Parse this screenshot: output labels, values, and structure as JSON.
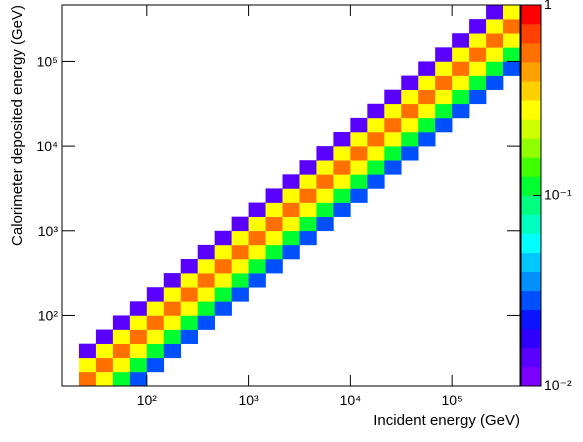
{
  "chart_data": {
    "type": "heatmap",
    "x_label": "Incident energy (GeV)",
    "y_label": "Calorimeter deposited energy (GeV)",
    "xlog": true,
    "ylog": true,
    "zlog": true,
    "xlim": [
      14.678,
      464160
    ],
    "ylim": [
      14.678,
      464160
    ],
    "zlim": [
      0.01,
      1
    ],
    "xticks": [
      {
        "value": 100,
        "label": "10²"
      },
      {
        "value": 1000,
        "label": "10³"
      },
      {
        "value": 10000,
        "label": "10⁴"
      },
      {
        "value": 100000,
        "label": "10⁵"
      }
    ],
    "yticks": [
      {
        "value": 100,
        "label": "10²"
      },
      {
        "value": 1000,
        "label": "10³"
      },
      {
        "value": 10000,
        "label": "10⁴"
      },
      {
        "value": 100000,
        "label": "10⁵"
      }
    ],
    "zticks": [
      {
        "value": 0.01,
        "label": "10⁻²"
      },
      {
        "value": 0.1,
        "label": "10⁻¹"
      },
      1
    ],
    "palette": [
      "#7b00ff",
      "#5a00ff",
      "#3000ff",
      "#0a14ff",
      "#0050ff",
      "#0090ff",
      "#00c8ff",
      "#00ffff",
      "#00ffc0",
      "#00ff80",
      "#00ff30",
      "#40ff00",
      "#90ff00",
      "#d0ff00",
      "#ffff00",
      "#ffd000",
      "#ffa000",
      "#ff7000",
      "#ff4000",
      "#ff0000"
    ],
    "x_bins": [
      14.678,
      21.544,
      31.623,
      46.416,
      68.129,
      100,
      146.78,
      215.44,
      316.23,
      464.16,
      681.29,
      1000,
      1467.8,
      2154.4,
      3162.3,
      4641.6,
      6812.9,
      10000,
      14678,
      21544,
      31623,
      46416,
      68129,
      100000,
      146780,
      215440,
      316230,
      464160
    ],
    "y_bins": [
      14.678,
      21.544,
      31.623,
      46.416,
      68.129,
      100,
      146.78,
      215.44,
      316.23,
      464.16,
      681.29,
      1000,
      1467.8,
      2154.4,
      3162.3,
      4641.6,
      6812.9,
      10000,
      14678,
      21544,
      31623,
      46416,
      68129,
      100000,
      146780,
      215440,
      316230,
      464160
    ],
    "z": [
      [
        null,
        0.55,
        0.3,
        0.12,
        0.03,
        null,
        null,
        null,
        null,
        null,
        null,
        null,
        null,
        null,
        null,
        null,
        null,
        null,
        null,
        null,
        null,
        null,
        null,
        null,
        null,
        null,
        null
      ],
      [
        null,
        0.3,
        0.55,
        0.3,
        0.12,
        0.03,
        null,
        null,
        null,
        null,
        null,
        null,
        null,
        null,
        null,
        null,
        null,
        null,
        null,
        null,
        null,
        null,
        null,
        null,
        null,
        null,
        null
      ],
      [
        null,
        0.013,
        0.3,
        0.55,
        0.3,
        0.12,
        0.03,
        null,
        null,
        null,
        null,
        null,
        null,
        null,
        null,
        null,
        null,
        null,
        null,
        null,
        null,
        null,
        null,
        null,
        null,
        null,
        null
      ],
      [
        null,
        null,
        0.013,
        0.3,
        0.55,
        0.3,
        0.12,
        0.03,
        null,
        null,
        null,
        null,
        null,
        null,
        null,
        null,
        null,
        null,
        null,
        null,
        null,
        null,
        null,
        null,
        null,
        null,
        null
      ],
      [
        null,
        null,
        null,
        0.013,
        0.3,
        0.55,
        0.3,
        0.12,
        0.03,
        null,
        null,
        null,
        null,
        null,
        null,
        null,
        null,
        null,
        null,
        null,
        null,
        null,
        null,
        null,
        null,
        null,
        null
      ],
      [
        null,
        null,
        null,
        null,
        0.013,
        0.3,
        0.55,
        0.3,
        0.12,
        0.03,
        null,
        null,
        null,
        null,
        null,
        null,
        null,
        null,
        null,
        null,
        null,
        null,
        null,
        null,
        null,
        null,
        null
      ],
      [
        null,
        null,
        null,
        null,
        null,
        0.013,
        0.3,
        0.55,
        0.3,
        0.12,
        0.03,
        null,
        null,
        null,
        null,
        null,
        null,
        null,
        null,
        null,
        null,
        null,
        null,
        null,
        null,
        null,
        null
      ],
      [
        null,
        null,
        null,
        null,
        null,
        null,
        0.013,
        0.3,
        0.55,
        0.3,
        0.12,
        0.03,
        null,
        null,
        null,
        null,
        null,
        null,
        null,
        null,
        null,
        null,
        null,
        null,
        null,
        null,
        null
      ],
      [
        null,
        null,
        null,
        null,
        null,
        null,
        null,
        0.013,
        0.3,
        0.55,
        0.3,
        0.12,
        0.03,
        null,
        null,
        null,
        null,
        null,
        null,
        null,
        null,
        null,
        null,
        null,
        null,
        null,
        null
      ],
      [
        null,
        null,
        null,
        null,
        null,
        null,
        null,
        null,
        0.013,
        0.3,
        0.55,
        0.3,
        0.12,
        0.03,
        null,
        null,
        null,
        null,
        null,
        null,
        null,
        null,
        null,
        null,
        null,
        null,
        null
      ],
      [
        null,
        null,
        null,
        null,
        null,
        null,
        null,
        null,
        null,
        0.013,
        0.3,
        0.55,
        0.3,
        0.12,
        0.03,
        null,
        null,
        null,
        null,
        null,
        null,
        null,
        null,
        null,
        null,
        null,
        null
      ],
      [
        null,
        null,
        null,
        null,
        null,
        null,
        null,
        null,
        null,
        null,
        0.013,
        0.3,
        0.55,
        0.3,
        0.12,
        0.03,
        null,
        null,
        null,
        null,
        null,
        null,
        null,
        null,
        null,
        null,
        null
      ],
      [
        null,
        null,
        null,
        null,
        null,
        null,
        null,
        null,
        null,
        null,
        null,
        0.013,
        0.3,
        0.55,
        0.3,
        0.12,
        0.03,
        null,
        null,
        null,
        null,
        null,
        null,
        null,
        null,
        null,
        null
      ],
      [
        null,
        null,
        null,
        null,
        null,
        null,
        null,
        null,
        null,
        null,
        null,
        null,
        0.013,
        0.3,
        0.55,
        0.3,
        0.12,
        0.03,
        null,
        null,
        null,
        null,
        null,
        null,
        null,
        null,
        null
      ],
      [
        null,
        null,
        null,
        null,
        null,
        null,
        null,
        null,
        null,
        null,
        null,
        null,
        null,
        0.013,
        0.3,
        0.55,
        0.3,
        0.12,
        0.03,
        null,
        null,
        null,
        null,
        null,
        null,
        null,
        null
      ],
      [
        null,
        null,
        null,
        null,
        null,
        null,
        null,
        null,
        null,
        null,
        null,
        null,
        null,
        null,
        0.013,
        0.3,
        0.55,
        0.3,
        0.12,
        0.03,
        null,
        null,
        null,
        null,
        null,
        null,
        null
      ],
      [
        null,
        null,
        null,
        null,
        null,
        null,
        null,
        null,
        null,
        null,
        null,
        null,
        null,
        null,
        null,
        0.013,
        0.3,
        0.55,
        0.3,
        0.12,
        0.03,
        null,
        null,
        null,
        null,
        null,
        null
      ],
      [
        null,
        null,
        null,
        null,
        null,
        null,
        null,
        null,
        null,
        null,
        null,
        null,
        null,
        null,
        null,
        null,
        0.013,
        0.3,
        0.55,
        0.3,
        0.12,
        0.03,
        null,
        null,
        null,
        null,
        null
      ],
      [
        null,
        null,
        null,
        null,
        null,
        null,
        null,
        null,
        null,
        null,
        null,
        null,
        null,
        null,
        null,
        null,
        null,
        0.013,
        0.3,
        0.55,
        0.3,
        0.12,
        0.03,
        null,
        null,
        null,
        null
      ],
      [
        null,
        null,
        null,
        null,
        null,
        null,
        null,
        null,
        null,
        null,
        null,
        null,
        null,
        null,
        null,
        null,
        null,
        null,
        0.013,
        0.3,
        0.55,
        0.3,
        0.12,
        0.03,
        null,
        null,
        null
      ],
      [
        null,
        null,
        null,
        null,
        null,
        null,
        null,
        null,
        null,
        null,
        null,
        null,
        null,
        null,
        null,
        null,
        null,
        null,
        null,
        0.013,
        0.3,
        0.55,
        0.3,
        0.12,
        0.03,
        null,
        null
      ],
      [
        null,
        null,
        null,
        null,
        null,
        null,
        null,
        null,
        null,
        null,
        null,
        null,
        null,
        null,
        null,
        null,
        null,
        null,
        null,
        null,
        0.013,
        0.3,
        0.55,
        0.3,
        0.12,
        0.03,
        null
      ],
      [
        null,
        null,
        null,
        null,
        null,
        null,
        null,
        null,
        null,
        null,
        null,
        null,
        null,
        null,
        null,
        null,
        null,
        null,
        null,
        null,
        null,
        0.013,
        0.3,
        0.55,
        0.3,
        0.12,
        0.03
      ],
      [
        null,
        null,
        null,
        null,
        null,
        null,
        null,
        null,
        null,
        null,
        null,
        null,
        null,
        null,
        null,
        null,
        null,
        null,
        null,
        null,
        null,
        null,
        0.013,
        0.3,
        0.55,
        0.3,
        0.12
      ],
      [
        null,
        null,
        null,
        null,
        null,
        null,
        null,
        null,
        null,
        null,
        null,
        null,
        null,
        null,
        null,
        null,
        null,
        null,
        null,
        null,
        null,
        null,
        null,
        0.013,
        0.3,
        0.55,
        0.3
      ],
      [
        null,
        null,
        null,
        null,
        null,
        null,
        null,
        null,
        null,
        null,
        null,
        null,
        null,
        null,
        null,
        null,
        null,
        null,
        null,
        null,
        null,
        null,
        null,
        null,
        0.013,
        0.3,
        0.55
      ],
      [
        null,
        null,
        null,
        null,
        null,
        null,
        null,
        null,
        null,
        null,
        null,
        null,
        null,
        null,
        null,
        null,
        null,
        null,
        null,
        null,
        null,
        null,
        null,
        null,
        null,
        0.013,
        0.3
      ]
    ]
  }
}
